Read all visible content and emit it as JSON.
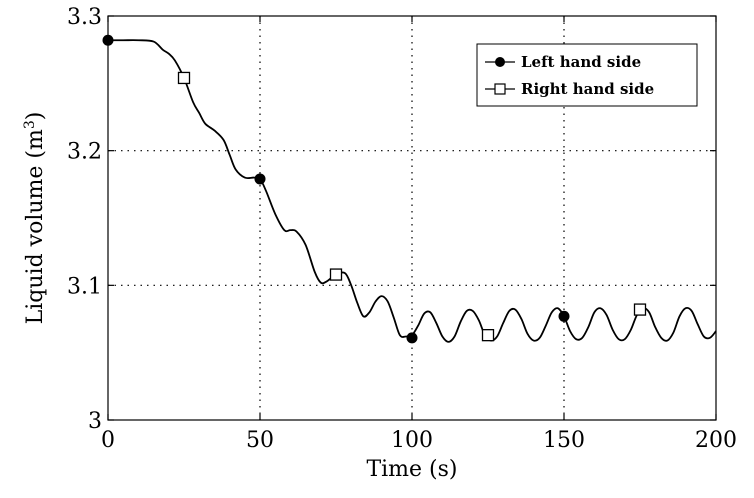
{
  "chart_data": {
    "type": "line",
    "xlabel": "Time (s)",
    "ylabel": "Liquid volume (m",
    "ylabel_sup": "3",
    "ylabel_close": ")",
    "xlim": [
      0,
      200
    ],
    "ylim": [
      3.0,
      3.3
    ],
    "xticks": [
      0,
      50,
      100,
      150,
      200
    ],
    "xtick_labels": [
      "0",
      "50",
      "100",
      "150",
      "200"
    ],
    "yticks": [
      3.0,
      3.1,
      3.2,
      3.3
    ],
    "ytick_labels": [
      "3",
      "3.1",
      "3.2",
      "3.3"
    ],
    "grid": "dotted",
    "legend_position": "top-right",
    "curve": {
      "x": [
        0,
        5,
        10,
        15,
        18,
        20,
        22,
        25,
        28,
        30,
        32,
        35,
        38,
        40,
        42,
        45,
        48,
        50,
        52,
        55,
        58,
        60,
        62,
        65,
        68,
        70,
        72,
        75,
        78,
        80,
        82,
        84,
        86,
        88,
        90,
        92,
        94,
        96,
        98,
        100,
        102,
        104,
        106,
        108,
        110,
        112,
        114,
        116,
        118,
        120,
        122,
        124,
        126,
        128,
        130,
        132,
        134,
        136,
        138,
        140,
        142,
        144,
        146,
        148,
        150,
        152,
        154,
        156,
        158,
        160,
        162,
        164,
        166,
        168,
        170,
        172,
        174,
        176,
        178,
        180,
        182,
        184,
        186,
        188,
        190,
        192,
        194,
        196,
        198,
        200
      ],
      "y": [
        3.282,
        3.282,
        3.282,
        3.281,
        3.275,
        3.272,
        3.267,
        3.254,
        3.236,
        3.228,
        3.22,
        3.215,
        3.208,
        3.197,
        3.186,
        3.18,
        3.18,
        3.179,
        3.17,
        3.153,
        3.141,
        3.141,
        3.14,
        3.13,
        3.11,
        3.102,
        3.103,
        3.108,
        3.109,
        3.1,
        3.087,
        3.077,
        3.08,
        3.088,
        3.092,
        3.088,
        3.076,
        3.063,
        3.062,
        3.063,
        3.07,
        3.079,
        3.08,
        3.072,
        3.062,
        3.058,
        3.062,
        3.073,
        3.081,
        3.081,
        3.074,
        3.063,
        3.059,
        3.062,
        3.072,
        3.081,
        3.082,
        3.075,
        3.064,
        3.059,
        3.061,
        3.07,
        3.08,
        3.083,
        3.077,
        3.066,
        3.06,
        3.061,
        3.069,
        3.08,
        3.083,
        3.078,
        3.067,
        3.06,
        3.06,
        3.067,
        3.078,
        3.083,
        3.08,
        3.069,
        3.061,
        3.059,
        3.065,
        3.077,
        3.083,
        3.081,
        3.071,
        3.062,
        3.061,
        3.066
      ]
    },
    "series": [
      {
        "name": "Left hand side",
        "marker": "filled-circle",
        "points": [
          [
            0,
            3.282
          ],
          [
            50,
            3.179
          ],
          [
            100,
            3.061
          ],
          [
            150,
            3.077
          ]
        ]
      },
      {
        "name": "Right hand side",
        "marker": "open-square",
        "points": [
          [
            25,
            3.254
          ],
          [
            75,
            3.108
          ],
          [
            125,
            3.063
          ],
          [
            175,
            3.082
          ]
        ]
      }
    ],
    "colors": {
      "line": "#000000",
      "grid": "#000000",
      "background": "#ffffff"
    }
  }
}
